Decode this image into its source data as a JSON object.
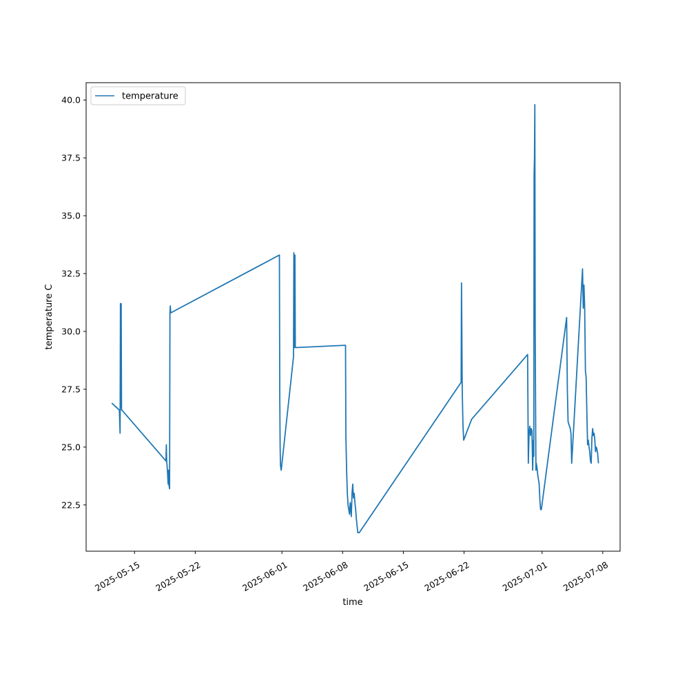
{
  "chart_data": {
    "type": "line",
    "title": "",
    "xlabel": "time",
    "ylabel": "temperature C",
    "x_axis_type": "date",
    "xlim": [
      "2025-05-09 10:00",
      "2025-07-10 00:00"
    ],
    "ylim": [
      20.5,
      40.75
    ],
    "x_ticks": [
      "2025-05-15",
      "2025-05-22",
      "2025-06-01",
      "2025-06-08",
      "2025-06-15",
      "2025-06-22",
      "2025-07-01",
      "2025-07-08"
    ],
    "y_ticks": [
      "22.5",
      "25.0",
      "27.5",
      "30.0",
      "32.5",
      "35.0",
      "37.5",
      "40.0"
    ],
    "grid": false,
    "legend": {
      "position": "top-left",
      "entries": [
        "temperature"
      ]
    },
    "colors": {
      "temperature": "#1f77b4"
    },
    "series": [
      {
        "name": "temperature",
        "x": [
          "2025-05-12 09:00",
          "2025-05-13 06:00",
          "2025-05-13 08:00",
          "2025-05-13 09:00",
          "2025-05-13 10:00",
          "2025-05-13 11:00",
          "2025-05-13 12:00",
          "2025-05-13 13:00",
          "2025-05-18 15:00",
          "2025-05-18 16:00",
          "2025-05-18 17:00",
          "2025-05-18 19:00",
          "2025-05-18 21:00",
          "2025-05-18 22:00",
          "2025-05-18 23:00",
          "2025-05-19 00:00",
          "2025-05-19 01:00",
          "2025-05-19 02:00",
          "2025-05-19 03:00",
          "2025-05-19 04:00",
          "2025-05-31 17:00",
          "2025-05-31 18:00",
          "2025-05-31 19:00",
          "2025-05-31 20:00",
          "2025-05-31 22:00",
          "2025-06-02 08:00",
          "2025-06-02 09:00",
          "2025-06-02 10:00",
          "2025-06-02 12:00",
          "2025-06-02 13:00",
          "2025-06-08 08:00",
          "2025-06-08 09:00",
          "2025-06-08 11:00",
          "2025-06-08 13:00",
          "2025-06-08 15:00",
          "2025-06-08 17:00",
          "2025-06-08 19:00",
          "2025-06-08 21:00",
          "2025-06-09 00:00",
          "2025-06-09 02:00",
          "2025-06-09 04:00",
          "2025-06-09 06:00",
          "2025-06-09 08:00",
          "2025-06-09 10:00",
          "2025-06-09 12:00",
          "2025-06-09 14:00",
          "2025-06-09 16:00",
          "2025-06-09 18:00",
          "2025-06-09 22:00",
          "2025-06-21 16:00",
          "2025-06-21 17:00",
          "2025-06-21 18:00",
          "2025-06-21 19:00",
          "2025-06-21 21:00",
          "2025-06-21 23:00",
          "2025-06-22 21:00",
          "2025-06-29 08:00",
          "2025-06-29 10:00",
          "2025-06-29 12:00",
          "2025-06-29 14:00",
          "2025-06-29 16:00",
          "2025-06-29 18:00",
          "2025-06-29 20:00",
          "2025-06-29 22:00",
          "2025-06-30 00:00",
          "2025-06-30 01:00",
          "2025-06-30 02:00",
          "2025-06-30 03:00",
          "2025-06-30 04:00",
          "2025-06-30 05:00",
          "2025-06-30 06:00",
          "2025-06-30 07:00",
          "2025-06-30 08:00",
          "2025-06-30 10:00",
          "2025-06-30 12:00",
          "2025-06-30 14:00",
          "2025-06-30 16:00",
          "2025-06-30 18:00",
          "2025-06-30 20:00",
          "2025-06-30 22:00",
          "2025-07-03 20:00",
          "2025-07-03 22:00",
          "2025-07-04 00:00",
          "2025-07-04 02:00",
          "2025-07-04 04:00",
          "2025-07-04 06:00",
          "2025-07-04 08:00",
          "2025-07-04 10:00",
          "2025-07-05 16:00",
          "2025-07-05 18:00",
          "2025-07-05 20:00",
          "2025-07-05 22:00",
          "2025-07-06 00:00",
          "2025-07-06 02:00",
          "2025-07-06 04:00",
          "2025-07-06 06:00",
          "2025-07-06 08:00",
          "2025-07-06 10:00",
          "2025-07-06 12:00",
          "2025-07-06 14:00",
          "2025-07-06 16:00",
          "2025-07-06 18:00",
          "2025-07-06 20:00",
          "2025-07-06 22:00",
          "2025-07-07 00:00",
          "2025-07-07 02:00",
          "2025-07-07 04:00",
          "2025-07-07 06:00",
          "2025-07-07 08:00",
          "2025-07-07 10:00",
          "2025-07-07 12:00"
        ],
        "y": [
          26.9,
          26.6,
          25.6,
          31.2,
          26.7,
          31.2,
          26.6,
          26.6,
          24.4,
          25.1,
          24.4,
          24.0,
          23.4,
          24.0,
          23.4,
          23.3,
          23.2,
          30.8,
          31.1,
          30.8,
          33.3,
          27.2,
          25.0,
          24.2,
          24.0,
          28.9,
          33.4,
          29.3,
          33.3,
          29.3,
          29.4,
          25.5,
          24.0,
          23.0,
          22.5,
          22.3,
          22.1,
          22.6,
          22.0,
          23.0,
          23.4,
          22.8,
          23.0,
          22.6,
          22.3,
          21.9,
          21.6,
          21.3,
          21.3,
          27.8,
          32.1,
          30.0,
          27.5,
          26.0,
          25.3,
          26.2,
          29.0,
          24.3,
          25.6,
          25.9,
          25.5,
          25.8,
          25.7,
          24.0,
          25.3,
          24.6,
          36.8,
          37.5,
          39.8,
          30.0,
          27.0,
          24.0,
          24.3,
          24.1,
          23.8,
          23.6,
          23.4,
          22.7,
          22.3,
          22.3,
          30.6,
          27.5,
          26.1,
          26.0,
          25.9,
          25.8,
          25.6,
          24.3,
          32.7,
          31.0,
          32.0,
          31.0,
          28.3,
          28.0,
          26.5,
          25.1,
          25.3,
          25.0,
          24.8,
          24.4,
          24.3,
          25.4,
          25.8,
          25.5,
          25.6,
          25.3,
          24.8,
          25.0,
          24.9,
          24.7,
          24.3
        ]
      }
    ]
  }
}
